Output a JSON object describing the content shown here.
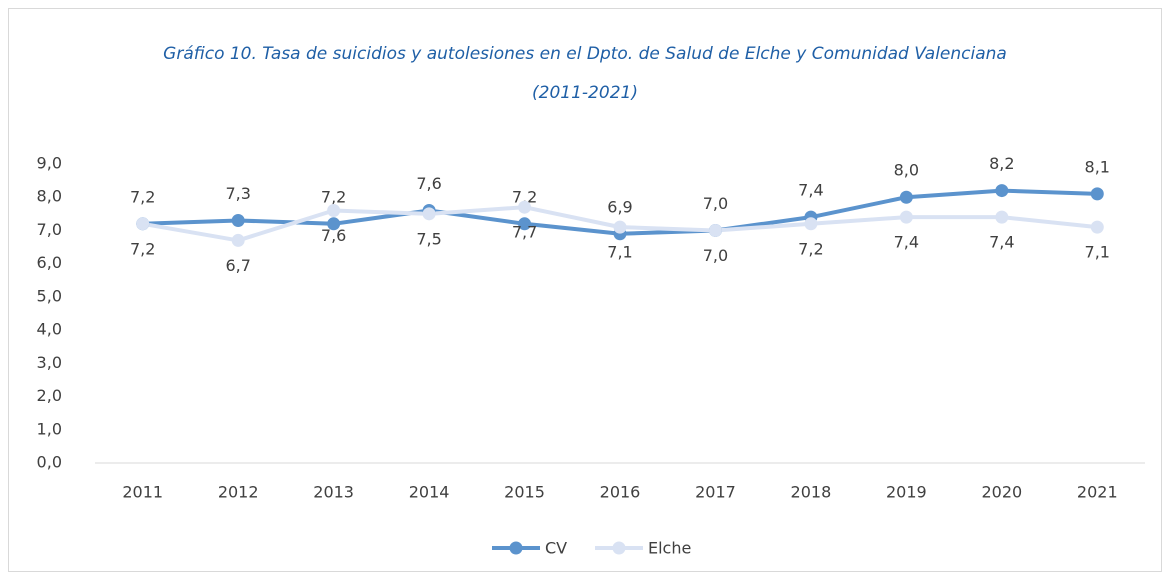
{
  "chart_data": {
    "type": "line",
    "title": "Gráfico 10. Tasa de suicidios y autolesiones en el Dpto. de Salud de Elche y Comunidad Valenciana",
    "subtitle": "(2011-2021)",
    "categories": [
      "2011",
      "2012",
      "2013",
      "2014",
      "2015",
      "2016",
      "2017",
      "2018",
      "2019",
      "2020",
      "2021"
    ],
    "series": [
      {
        "name": "CV",
        "color": "#5b93cd",
        "values": [
          7.2,
          7.3,
          7.2,
          7.6,
          7.2,
          6.9,
          7.0,
          7.4,
          8.0,
          8.2,
          8.1
        ],
        "value_labels": [
          "7,2",
          "7,3",
          "7,2",
          "7,6",
          "7,2",
          "6,9",
          "7,0",
          "7,4",
          "8,0",
          "8,2",
          "8,1"
        ]
      },
      {
        "name": "Elche",
        "color": "#d9e2f3",
        "values": [
          7.2,
          6.7,
          7.6,
          7.5,
          7.7,
          7.1,
          7.0,
          7.2,
          7.4,
          7.4,
          7.1
        ],
        "value_labels": [
          "7,2",
          "6,7",
          "7,6",
          "7,5",
          "7,7",
          "7,1",
          "7,0",
          "7,2",
          "7,4",
          "7,4",
          "7,1"
        ]
      }
    ],
    "ylim": [
      0,
      9
    ],
    "yticks": [
      {
        "value": 0,
        "label": "0,0"
      },
      {
        "value": 1,
        "label": "1,0"
      },
      {
        "value": 2,
        "label": "2,0"
      },
      {
        "value": 3,
        "label": "3,0"
      },
      {
        "value": 4,
        "label": "4,0"
      },
      {
        "value": 5,
        "label": "5,0"
      },
      {
        "value": 6,
        "label": "6,0"
      },
      {
        "value": 7,
        "label": "7,0"
      },
      {
        "value": 8,
        "label": "8,0"
      },
      {
        "value": 9,
        "label": "9,0"
      }
    ],
    "grid": false,
    "legend": "bottom"
  }
}
